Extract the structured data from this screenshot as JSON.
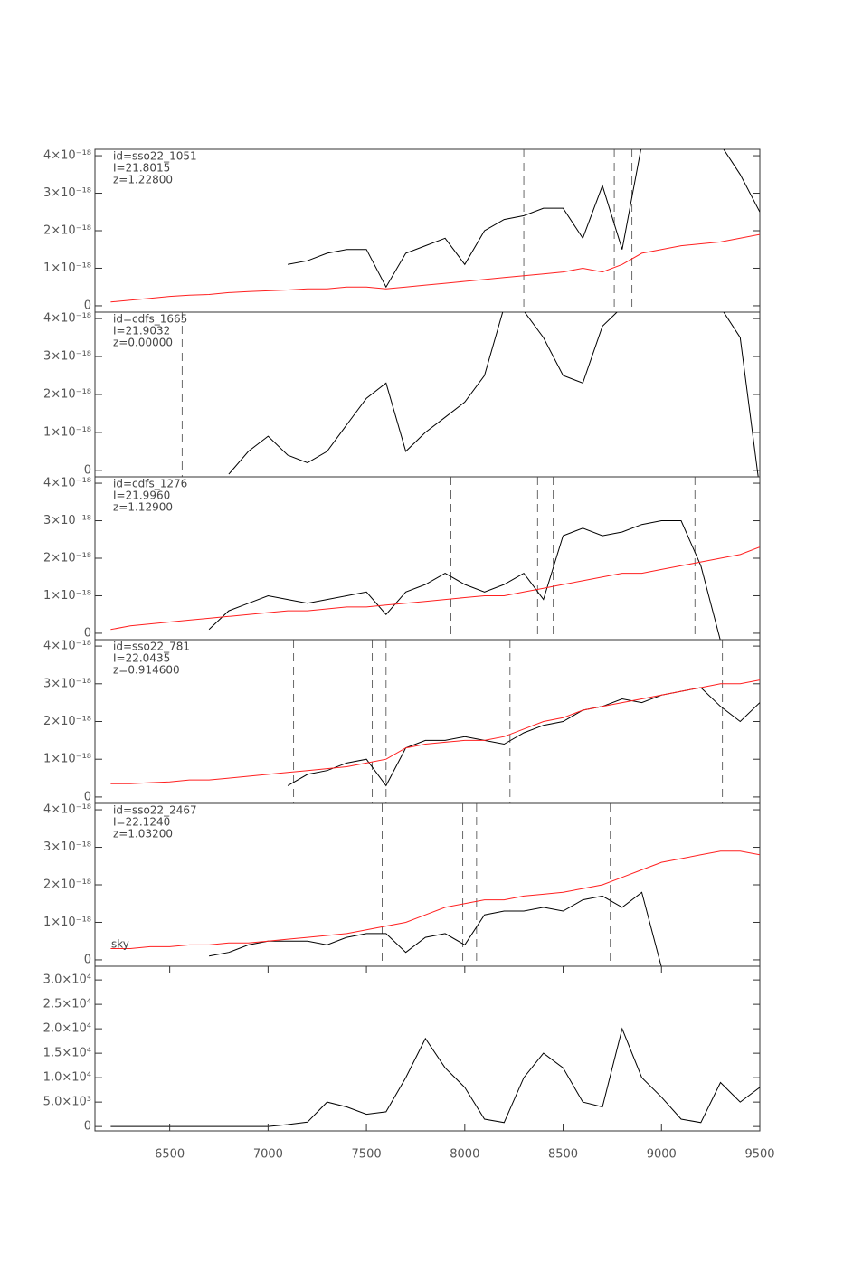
{
  "chart_data": [
    {
      "type": "line",
      "annotations": [
        "id=sso22_1051",
        "I=21.8015",
        "z=1.22800"
      ],
      "x": [
        6200,
        6300,
        6400,
        6500,
        6600,
        6700,
        6800,
        6900,
        7000,
        7100,
        7200,
        7300,
        7400,
        7500,
        7600,
        7700,
        7800,
        7900,
        8000,
        8100,
        8200,
        8300,
        8400,
        8500,
        8600,
        8700,
        8800,
        8900,
        9000,
        9100,
        9200,
        9300,
        9400,
        9500
      ],
      "xlim": [
        6120,
        9500
      ],
      "ylim": [
        -1.7e-19,
        4.17e-18
      ],
      "yticks": [
        0,
        {
          "value": 1e-18,
          "label": "1×10⁻¹⁸"
        },
        {
          "value": 2e-18,
          "label": "2×10⁻¹⁸"
        },
        {
          "value": 3e-18,
          "label": "3×10⁻¹⁸"
        },
        {
          "value": 4e-18,
          "label": "4×10⁻¹⁸"
        }
      ],
      "vlines": [
        8300,
        8760,
        8850
      ],
      "series": [
        {
          "color": "#000000",
          "values": [
            null,
            null,
            null,
            null,
            null,
            null,
            null,
            null,
            null,
            1.1e-18,
            1.2e-18,
            1.4e-18,
            1.5e-18,
            1.5e-18,
            5e-19,
            1.4e-18,
            1.6e-18,
            1.8e-18,
            1.1e-18,
            2e-18,
            2.3e-18,
            2.4e-18,
            2.6e-18,
            2.6e-18,
            1.8e-18,
            3.2e-18,
            1.5e-18,
            4.3e-18,
            4.3e-18,
            4.3e-18,
            4.3e-18,
            4.3e-18,
            3.5e-18,
            2.5e-18
          ]
        },
        {
          "color": "#ff2020",
          "values": [
            1e-19,
            1.5e-19,
            2e-19,
            2.5e-19,
            2.8e-19,
            3e-19,
            3.5e-19,
            3.8e-19,
            4e-19,
            4.2e-19,
            4.5e-19,
            4.5e-19,
            5e-19,
            5e-19,
            4.5e-19,
            5e-19,
            5.5e-19,
            6e-19,
            6.5e-19,
            7e-19,
            7.5e-19,
            8e-19,
            8.5e-19,
            9e-19,
            1e-18,
            9e-19,
            1.1e-18,
            1.4e-18,
            1.5e-18,
            1.6e-18,
            1.65e-18,
            1.7e-18,
            1.8e-18,
            1.9e-18
          ]
        }
      ]
    },
    {
      "type": "line",
      "annotations": [
        "id=cdfs_1665",
        "I=21.9032",
        "z=0.00000"
      ],
      "x": [
        6200,
        6300,
        6400,
        6500,
        6600,
        6700,
        6800,
        6900,
        7000,
        7100,
        7200,
        7300,
        7400,
        7500,
        7600,
        7700,
        7800,
        7900,
        8000,
        8100,
        8200,
        8300,
        8400,
        8500,
        8600,
        8700,
        8800,
        8900,
        9000,
        9100,
        9200,
        9300,
        9400,
        9500
      ],
      "xlim": [
        6120,
        9500
      ],
      "ylim": [
        -1.7e-19,
        4.17e-18
      ],
      "yticks": [
        0,
        {
          "value": 1e-18,
          "label": "1×10⁻¹⁸"
        },
        {
          "value": 2e-18,
          "label": "2×10⁻¹⁸"
        },
        {
          "value": 3e-18,
          "label": "3×10⁻¹⁸"
        },
        {
          "value": 4e-18,
          "label": "4×10⁻¹⁸"
        }
      ],
      "vlines": [
        6563
      ],
      "series": [
        {
          "color": "#000000",
          "values": [
            null,
            null,
            null,
            null,
            null,
            null,
            -1e-19,
            5e-19,
            9e-19,
            4e-19,
            2e-19,
            5e-19,
            1.2e-18,
            1.9e-18,
            2.3e-18,
            5e-19,
            1e-18,
            1.4e-18,
            1.8e-18,
            2.5e-18,
            4.3e-18,
            4.2e-18,
            3.5e-18,
            2.5e-18,
            2.3e-18,
            3.8e-18,
            4.3e-18,
            4.3e-18,
            4.3e-18,
            4.3e-18,
            4.3e-18,
            4.3e-18,
            3.5e-18,
            -5e-19
          ]
        }
      ]
    },
    {
      "type": "line",
      "annotations": [
        "id=cdfs_1276",
        "I=21.9960",
        "z=1.12900"
      ],
      "x": [
        6200,
        6300,
        6400,
        6500,
        6600,
        6700,
        6800,
        6900,
        7000,
        7100,
        7200,
        7300,
        7400,
        7500,
        7600,
        7700,
        7800,
        7900,
        8000,
        8100,
        8200,
        8300,
        8400,
        8500,
        8600,
        8700,
        8800,
        8900,
        9000,
        9100,
        9200,
        9300,
        9400,
        9500
      ],
      "xlim": [
        6120,
        9500
      ],
      "ylim": [
        -1.7e-19,
        4.17e-18
      ],
      "yticks": [
        0,
        {
          "value": 1e-18,
          "label": "1×10⁻¹⁸"
        },
        {
          "value": 2e-18,
          "label": "2×10⁻¹⁸"
        },
        {
          "value": 3e-18,
          "label": "3×10⁻¹⁸"
        },
        {
          "value": 4e-18,
          "label": "4×10⁻¹⁸"
        }
      ],
      "vlines": [
        7930,
        8370,
        8450,
        9170
      ],
      "series": [
        {
          "color": "#000000",
          "values": [
            null,
            null,
            null,
            null,
            null,
            1e-19,
            6e-19,
            8e-19,
            1e-18,
            9e-19,
            8e-19,
            9e-19,
            1e-18,
            1.1e-18,
            5e-19,
            1.1e-18,
            1.3e-18,
            1.6e-18,
            1.3e-18,
            1.1e-18,
            1.3e-18,
            1.6e-18,
            9e-19,
            2.6e-18,
            2.8e-18,
            2.6e-18,
            2.7e-18,
            2.9e-18,
            3e-18,
            3e-18,
            1.8e-18,
            -2e-19,
            null,
            null
          ]
        },
        {
          "color": "#ff2020",
          "values": [
            1e-19,
            2e-19,
            2.5e-19,
            3e-19,
            3.5e-19,
            4e-19,
            4.5e-19,
            5e-19,
            5.5e-19,
            6e-19,
            6e-19,
            6.5e-19,
            7e-19,
            7e-19,
            7.5e-19,
            8e-19,
            8.5e-19,
            9e-19,
            9.5e-19,
            1e-18,
            1e-18,
            1.1e-18,
            1.2e-18,
            1.3e-18,
            1.4e-18,
            1.5e-18,
            1.6e-18,
            1.6e-18,
            1.7e-18,
            1.8e-18,
            1.9e-18,
            2e-18,
            2.1e-18,
            2.3e-18
          ]
        }
      ]
    },
    {
      "type": "line",
      "annotations": [
        "id=sso22_781",
        "I=22.0435",
        "z=0.914600"
      ],
      "x": [
        6200,
        6300,
        6400,
        6500,
        6600,
        6700,
        6800,
        6900,
        7000,
        7100,
        7200,
        7300,
        7400,
        7500,
        7600,
        7700,
        7800,
        7900,
        8000,
        8100,
        8200,
        8300,
        8400,
        8500,
        8600,
        8700,
        8800,
        8900,
        9000,
        9100,
        9200,
        9300,
        9400,
        9500
      ],
      "xlim": [
        6120,
        9500
      ],
      "ylim": [
        -1.7e-19,
        4.17e-18
      ],
      "yticks": [
        0,
        {
          "value": 1e-18,
          "label": "1×10⁻¹⁸"
        },
        {
          "value": 2e-18,
          "label": "2×10⁻¹⁸"
        },
        {
          "value": 3e-18,
          "label": "3×10⁻¹⁸"
        },
        {
          "value": 4e-18,
          "label": "4×10⁻¹⁸"
        }
      ],
      "vlines": [
        7130,
        7530,
        7600,
        8230,
        9310
      ],
      "series": [
        {
          "color": "#000000",
          "values": [
            null,
            null,
            null,
            null,
            null,
            null,
            null,
            null,
            null,
            3e-19,
            6e-19,
            7e-19,
            9e-19,
            1e-18,
            3e-19,
            1.3e-18,
            1.5e-18,
            1.5e-18,
            1.6e-18,
            1.5e-18,
            1.4e-18,
            1.7e-18,
            1.9e-18,
            2e-18,
            2.3e-18,
            2.4e-18,
            2.6e-18,
            2.5e-18,
            2.7e-18,
            2.8e-18,
            2.9e-18,
            2.4e-18,
            2e-18,
            2.5e-18
          ]
        },
        {
          "color": "#ff2020",
          "values": [
            3.5e-19,
            3.5e-19,
            3.8e-19,
            4e-19,
            4.5e-19,
            4.5e-19,
            5e-19,
            5.5e-19,
            6e-19,
            6.5e-19,
            7e-19,
            7.5e-19,
            8e-19,
            9e-19,
            1e-18,
            1.3e-18,
            1.4e-18,
            1.45e-18,
            1.5e-18,
            1.5e-18,
            1.6e-18,
            1.8e-18,
            2e-18,
            2.1e-18,
            2.3e-18,
            2.4e-18,
            2.5e-18,
            2.6e-18,
            2.7e-18,
            2.8e-18,
            2.9e-18,
            3e-18,
            3e-18,
            3.1e-18
          ]
        }
      ]
    },
    {
      "type": "line",
      "annotations": [
        "id=sso22_2467",
        "I=22.1240",
        "z=1.03200"
      ],
      "sky_label": "sky",
      "x": [
        6200,
        6300,
        6400,
        6500,
        6600,
        6700,
        6800,
        6900,
        7000,
        7100,
        7200,
        7300,
        7400,
        7500,
        7600,
        7700,
        7800,
        7900,
        8000,
        8100,
        8200,
        8300,
        8400,
        8500,
        8600,
        8700,
        8800,
        8900,
        9000,
        9100,
        9200,
        9300,
        9400,
        9500
      ],
      "xlim": [
        6120,
        9500
      ],
      "ylim": [
        -1.7e-19,
        4.17e-18
      ],
      "yticks": [
        0,
        {
          "value": 1e-18,
          "label": "1×10⁻¹⁸"
        },
        {
          "value": 2e-18,
          "label": "2×10⁻¹⁸"
        },
        {
          "value": 3e-18,
          "label": "3×10⁻¹⁸"
        },
        {
          "value": 4e-18,
          "label": "4×10⁻¹⁸"
        }
      ],
      "vlines": [
        7580,
        7990,
        8060,
        8740
      ],
      "series": [
        {
          "color": "#000000",
          "values": [
            null,
            null,
            null,
            null,
            null,
            1e-19,
            2e-19,
            4e-19,
            5e-19,
            5e-19,
            5e-19,
            4e-19,
            6e-19,
            7e-19,
            7e-19,
            2e-19,
            6e-19,
            7e-19,
            4e-19,
            1.2e-18,
            1.3e-18,
            1.3e-18,
            1.4e-18,
            1.3e-18,
            1.6e-18,
            1.7e-18,
            1.4e-18,
            1.8e-18,
            -2e-19,
            null,
            null,
            null,
            null,
            null
          ]
        },
        {
          "color": "#ff2020",
          "values": [
            3e-19,
            3e-19,
            3.5e-19,
            3.5e-19,
            4e-19,
            4e-19,
            4.5e-19,
            4.5e-19,
            5e-19,
            5.5e-19,
            6e-19,
            6.5e-19,
            7e-19,
            8e-19,
            9e-19,
            1e-18,
            1.2e-18,
            1.4e-18,
            1.5e-18,
            1.6e-18,
            1.6e-18,
            1.7e-18,
            1.75e-18,
            1.8e-18,
            1.9e-18,
            2e-18,
            2.2e-18,
            2.4e-18,
            2.6e-18,
            2.7e-18,
            2.8e-18,
            2.9e-18,
            2.9e-18,
            2.8e-18
          ]
        }
      ]
    },
    {
      "type": "line",
      "x": [
        6200,
        6300,
        6400,
        6500,
        6600,
        6700,
        6800,
        6900,
        7000,
        7100,
        7200,
        7300,
        7400,
        7500,
        7600,
        7700,
        7800,
        7900,
        8000,
        8100,
        8200,
        8300,
        8400,
        8500,
        8600,
        8700,
        8800,
        8900,
        9000,
        9100,
        9200,
        9300,
        9400,
        9500
      ],
      "xlim": [
        6120,
        9500
      ],
      "ylim": [
        -900,
        32800
      ],
      "xticks": [
        6500,
        7000,
        7500,
        8000,
        8500,
        9000,
        9500
      ],
      "yticks": [
        0,
        {
          "value": 5000,
          "label": "5.0×10³"
        },
        {
          "value": 10000,
          "label": "1.0×10⁴"
        },
        {
          "value": 15000,
          "label": "1.5×10⁴"
        },
        {
          "value": 20000,
          "label": "2.0×10⁴"
        },
        {
          "value": 25000,
          "label": "2.5×10⁴"
        },
        {
          "value": 30000,
          "label": "3.0×10⁴"
        }
      ],
      "series": [
        {
          "color": "#000000",
          "values": [
            0,
            0,
            0,
            0,
            0,
            0,
            0,
            0,
            0,
            400,
            900,
            5000,
            4000,
            2500,
            3000,
            10000,
            18000,
            12000,
            8000,
            1500,
            800,
            10000,
            15000,
            12000,
            5000,
            4000,
            20000,
            10000,
            6000,
            1500,
            800,
            9000,
            5000,
            8000
          ]
        }
      ]
    }
  ]
}
